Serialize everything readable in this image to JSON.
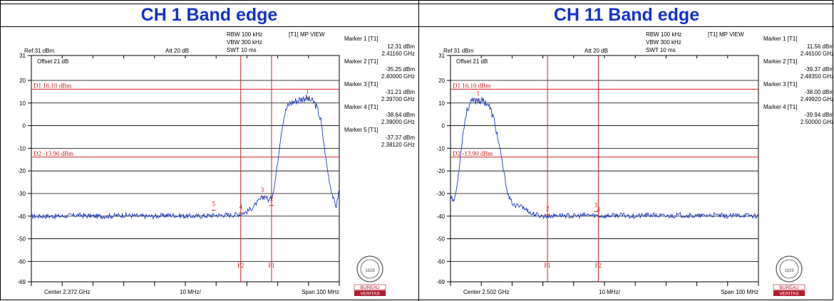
{
  "colors": {
    "title": "#1432c8",
    "trace": "#1f3fc0",
    "limit": "#cc2222",
    "marker": "#cc2222",
    "grid": "#000000",
    "logo_red": "#b01c2e"
  },
  "panels": [
    {
      "title": "CH 1 Band edge",
      "header": {
        "ref_label": "Ref 31 dBm",
        "att_label": "Att  20 dB",
        "rbw": "RBW 100 kHz",
        "vbw": "VBW 300 kHz",
        "swt": "SWT 10 ms",
        "view": "[T1] MP VIEW",
        "offset": "Offset 21 dB"
      },
      "footer": {
        "center": "Center 2.372 GHz",
        "div": "10 MHz/",
        "span": "Span 100 MHz"
      },
      "markers": [
        {
          "label": "Marker 1 [T1]",
          "level": "12.31 dBm",
          "freq": "2.41160 GHz"
        },
        {
          "label": "Marker 2 [T1]",
          "level": "-35.25 dBm",
          "freq": "2.40000 GHz"
        },
        {
          "label": "Marker 3 [T1]",
          "level": "-31.21 dBm",
          "freq": "2.39700 GHz"
        },
        {
          "label": "Marker 4 [T1]",
          "level": "-38.64 dBm",
          "freq": "2.39000 GHz"
        },
        {
          "label": "Marker 5 [T1]",
          "level": "-37.37 dBm",
          "freq": "2.38120 GHz"
        }
      ],
      "logo": {
        "top": "BUREAU",
        "bottom": "VERITAS",
        "year": "1828"
      },
      "chart_data": {
        "type": "line",
        "x_unit": "MHz offset from center",
        "xlim": [
          -50,
          50
        ],
        "ylim": [
          -69,
          31
        ],
        "y_ticks": [
          31,
          20,
          10,
          0,
          -10,
          -20,
          -30,
          -40,
          -50,
          -60,
          -69
        ],
        "limit_lines": [
          {
            "name": "D1 16.10 dBm",
            "value": 16.1
          },
          {
            "name": "D2 -13.90 dBm",
            "value": -13.9
          }
        ],
        "freq_lines": [
          {
            "name": "F2",
            "x": 18
          },
          {
            "name": "F1",
            "x": 28
          }
        ],
        "markers": [
          {
            "label": "1",
            "x": 39.6,
            "y": 12.31
          },
          {
            "label": "2",
            "x": 28.0,
            "y": -35.25
          },
          {
            "label": "3",
            "x": 25.0,
            "y": -31.21
          },
          {
            "label": "4",
            "x": 18.0,
            "y": -38.64
          },
          {
            "label": "5",
            "x": 9.2,
            "y": -37.37
          }
        ],
        "series": [
          {
            "x": [
              -50,
              -45,
              -40,
              -35,
              -30,
              -25,
              -20,
              -15,
              -10,
              -5,
              0,
              5,
              10,
              15,
              18,
              20,
              22,
              24,
              25,
              26,
              27,
              28,
              29,
              30,
              31,
              32,
              33,
              34,
              35,
              36,
              37,
              38,
              39,
              40,
              41,
              42,
              43,
              44,
              45,
              46,
              47,
              48,
              49,
              50
            ],
            "y": [
              -40,
              -40,
              -40,
              -39.5,
              -40,
              -40,
              -39.5,
              -40,
              -40,
              -39.5,
              -40,
              -40,
              -39.5,
              -39.5,
              -39,
              -38,
              -36,
              -33,
              -32,
              -31,
              -33,
              -32,
              -26,
              -16,
              -4,
              4,
              8,
              10,
              10.5,
              11,
              11.5,
              12,
              12.3,
              11.5,
              11,
              10,
              7,
              2,
              -8,
              -18,
              -26,
              -32,
              -36,
              -28
            ]
          }
        ]
      }
    },
    {
      "title": "CH 11 Band edge",
      "header": {
        "ref_label": "Ref 31 dBm",
        "att_label": "Att  20 dB",
        "rbw": "RBW 100 kHz",
        "vbw": "VBW 300 kHz",
        "swt": "SWT 10 ms",
        "view": "[T1] MP VIEW",
        "offset": "Offset 21 dB"
      },
      "footer": {
        "center": "Center 2.502 GHz",
        "div": "10 MHz/",
        "span": "Span 100 MHz"
      },
      "markers": [
        {
          "label": "Marker 1 [T1]",
          "level": "11.56 dBm",
          "freq": "2.46100 GHz"
        },
        {
          "label": "Marker 2 [T1]",
          "level": "-39.37 dBm",
          "freq": "2.48350 GHz"
        },
        {
          "label": "Marker 3 [T1]",
          "level": "-38.00 dBm",
          "freq": "2.49920 GHz"
        },
        {
          "label": "Marker 4 [T1]",
          "level": "-39.94 dBm",
          "freq": "2.50000 GHz"
        }
      ],
      "logo": {
        "top": "BUREAU",
        "bottom": "VERITAS",
        "year": "1828"
      },
      "chart_data": {
        "type": "line",
        "x_unit": "MHz offset from center",
        "xlim": [
          -50,
          50
        ],
        "ylim": [
          -69,
          31
        ],
        "y_ticks": [
          31,
          20,
          10,
          0,
          -10,
          -20,
          -30,
          -40,
          -50,
          -60,
          -69
        ],
        "limit_lines": [
          {
            "name": "D1 16.10 dBm",
            "value": 16.1
          },
          {
            "name": "D2 -13.90 dBm",
            "value": -13.9
          }
        ],
        "freq_lines": [
          {
            "name": "F1",
            "x": -18.5
          },
          {
            "name": "F2",
            "x": -2
          }
        ],
        "markers": [
          {
            "label": "1",
            "x": -41.0,
            "y": 11.56
          },
          {
            "label": "2",
            "x": -18.5,
            "y": -39.37
          },
          {
            "label": "3",
            "x": -2.8,
            "y": -38.0
          },
          {
            "label": "4",
            "x": -2.0,
            "y": -39.94
          }
        ],
        "series": [
          {
            "x": [
              -50,
              -49,
              -48,
              -47,
              -46,
              -45,
              -44,
              -43,
              -42,
              -41,
              -40,
              -39,
              -38,
              -37,
              -36,
              -35,
              -34,
              -33,
              -32,
              -31,
              -30,
              -29,
              -28,
              -27,
              -26,
              -25,
              -24,
              -23,
              -22,
              -20,
              -18,
              -15,
              -10,
              -5,
              0,
              5,
              10,
              15,
              20,
              25,
              30,
              35,
              40,
              45,
              50
            ],
            "y": [
              -30,
              -34,
              -28,
              -16,
              -4,
              5,
              9,
              10.5,
              11,
              11.6,
              11,
              10.5,
              10,
              7,
              3,
              -3,
              -10,
              -18,
              -26,
              -32,
              -34,
              -36,
              -35,
              -35,
              -37,
              -37,
              -39,
              -39,
              -39.5,
              -40,
              -40,
              -39.5,
              -40,
              -39.5,
              -40,
              -39.5,
              -40,
              -39.5,
              -40,
              -39.5,
              -40,
              -39.5,
              -40,
              -39.5,
              -40
            ]
          }
        ]
      }
    }
  ]
}
